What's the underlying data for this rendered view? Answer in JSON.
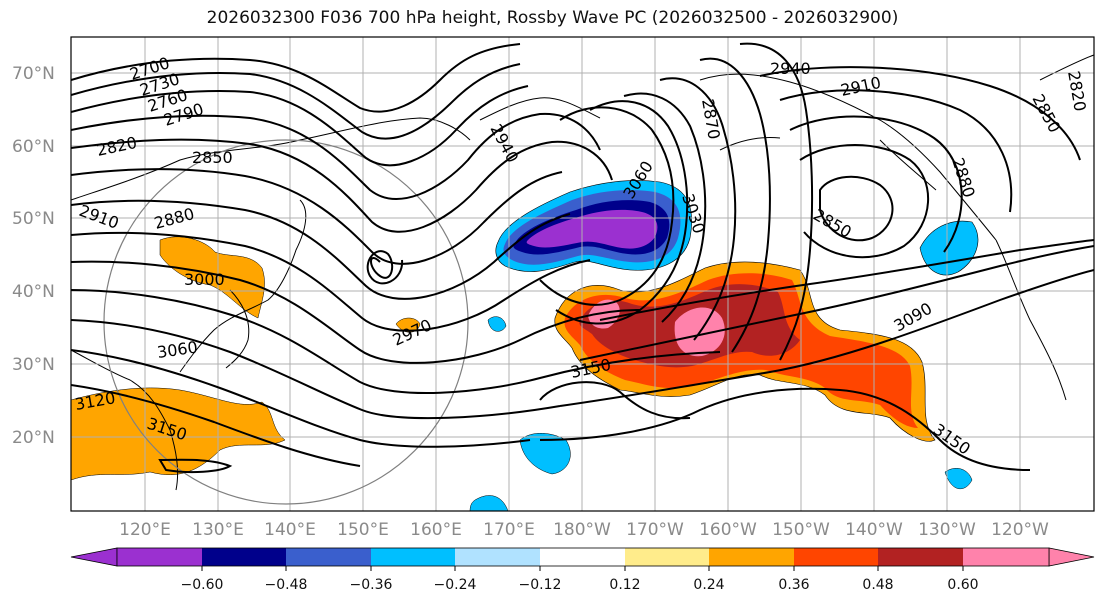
{
  "title": "2026032300 F036 700 hPa height, Rossby Wave PC (2026032500 - 2026032900)",
  "lat_labels": [
    "70°N",
    "60°N",
    "50°N",
    "40°N",
    "30°N",
    "20°N"
  ],
  "lon_labels": [
    "120°E",
    "130°E",
    "140°E",
    "150°E",
    "160°E",
    "170°E",
    "180°W",
    "170°W",
    "160°W",
    "150°W",
    "140°W",
    "130°W",
    "120°W"
  ],
  "contour_labels": {
    "c2700": "2700",
    "c2730": "2730",
    "c2760": "2760",
    "c2790": "2790",
    "c2820a": "2820",
    "c2850a": "2850",
    "c2880a": "2880",
    "c2910a": "2910",
    "c3000": "3000",
    "c3060": "3060",
    "c3120": "3120",
    "c3150a": "3150",
    "c2970": "2970",
    "c2940a": "2940",
    "c2940b": "2940",
    "c2910b": "2910",
    "c2870": "2870",
    "c3060b": "3060",
    "c3030": "3030",
    "c2850b": "2850",
    "c2880b": "2880",
    "c2820b": "2820",
    "c2850c": "2850",
    "c3090": "3090",
    "c3150b": "3150",
    "c3150c": "3150"
  },
  "colorbar": {
    "ticks": [
      "−0.60",
      "−0.48",
      "−0.36",
      "−0.24",
      "−0.12",
      "0.12",
      "0.24",
      "0.36",
      "0.48",
      "0.60"
    ],
    "colors": [
      "#9b30d0",
      "#00008b",
      "#3a5fcd",
      "#00bfff",
      "#b0e2ff",
      "#ffffff",
      "#ffec8b",
      "#ffa500",
      "#ff4500",
      "#b22222",
      "#ff82ab"
    ]
  },
  "colors": {
    "purple": "#9b30d0",
    "navy": "#00008b",
    "royal": "#3a5fcd",
    "deepsky": "#00bfff",
    "lightsky": "#b0e2ff",
    "yellow": "#ffec8b",
    "orange": "#ffa500",
    "redorange": "#ff4500",
    "firebrick": "#b22222",
    "pink": "#ff82ab"
  }
}
